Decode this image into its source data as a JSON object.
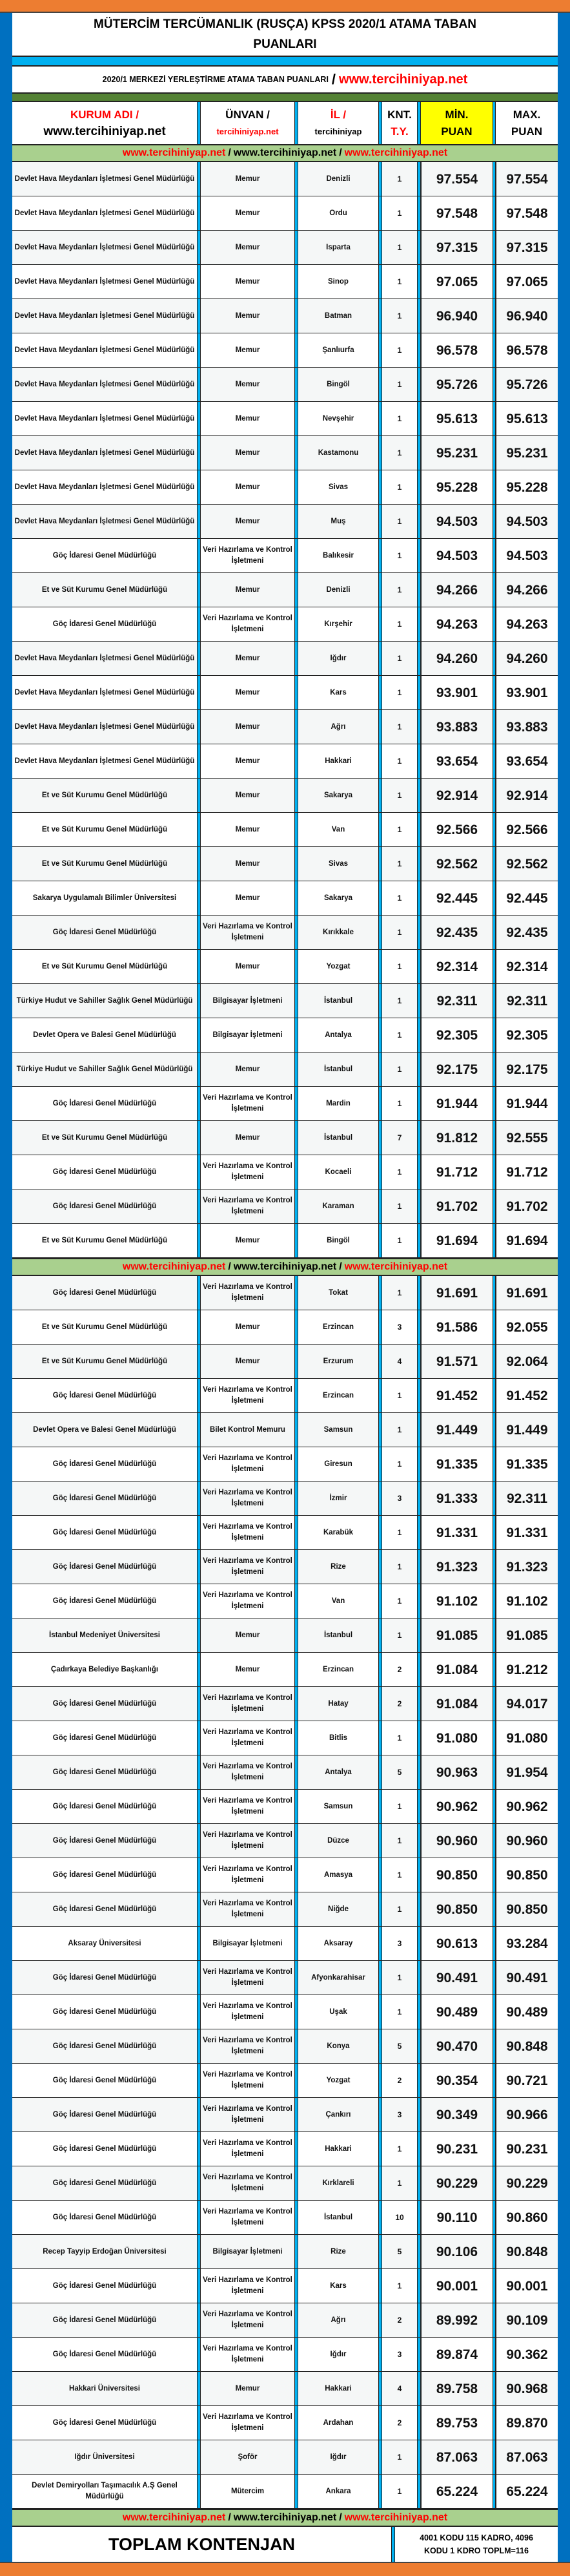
{
  "colors": {
    "frame": "#0070c0",
    "accent_orange": "#ed7d31",
    "strip_blue": "#00b0f0",
    "strip_green": "#548235",
    "link_bar": "#a9d08e",
    "min_header": "#ffff00",
    "red_text": "#ff0000"
  },
  "title": {
    "line1": "MÜTERCİM TERCÜMANLIK (RUSÇA) KPSS 2020/1 ATAMA TABAN",
    "line2": "PUANLARI"
  },
  "subtitle": {
    "text": "2020/1 MERKEZİ YERLEŞTİRME ATAMA TABAN PUANLARI",
    "slash": "/",
    "site": "www.tercihiniyap.net"
  },
  "header": {
    "kurum_a": "KURUM ADI /",
    "kurum_b": "www.tercihiniyap.net",
    "unvan_a": "ÜNVAN /",
    "unvan_b": "tercihiniyap.net",
    "il_a": "İL /",
    "il_b": "tercihiniyap",
    "knt_a": "KNT.",
    "knt_b": "T.Y.",
    "min_a": "MİN.",
    "min_b": "PUAN",
    "max_a": "MAX.",
    "max_b": "PUAN"
  },
  "linkbar": {
    "a": "www.tercihiniyap.net",
    "s1": "/",
    "b": "www.tercihiniyap.net",
    "s2": "/",
    "c": "www.tercihiniyap.net"
  },
  "sections": [
    {
      "rows": [
        [
          "Devlet Hava Meydanları İşletmesi Genel Müdürlüğü",
          "Memur",
          "Denizli",
          "1",
          "97.554",
          "97.554"
        ],
        [
          "Devlet Hava Meydanları İşletmesi Genel Müdürlüğü",
          "Memur",
          "Ordu",
          "1",
          "97.548",
          "97.548"
        ],
        [
          "Devlet Hava Meydanları İşletmesi Genel Müdürlüğü",
          "Memur",
          "Isparta",
          "1",
          "97.315",
          "97.315"
        ],
        [
          "Devlet Hava Meydanları İşletmesi Genel Müdürlüğü",
          "Memur",
          "Sinop",
          "1",
          "97.065",
          "97.065"
        ],
        [
          "Devlet Hava Meydanları İşletmesi Genel Müdürlüğü",
          "Memur",
          "Batman",
          "1",
          "96.940",
          "96.940"
        ],
        [
          "Devlet Hava Meydanları İşletmesi Genel Müdürlüğü",
          "Memur",
          "Şanlıurfa",
          "1",
          "96.578",
          "96.578"
        ],
        [
          "Devlet Hava Meydanları İşletmesi Genel Müdürlüğü",
          "Memur",
          "Bingöl",
          "1",
          "95.726",
          "95.726"
        ],
        [
          "Devlet Hava Meydanları İşletmesi Genel Müdürlüğü",
          "Memur",
          "Nevşehir",
          "1",
          "95.613",
          "95.613"
        ],
        [
          "Devlet Hava Meydanları İşletmesi Genel Müdürlüğü",
          "Memur",
          "Kastamonu",
          "1",
          "95.231",
          "95.231"
        ],
        [
          "Devlet Hava Meydanları İşletmesi Genel Müdürlüğü",
          "Memur",
          "Sivas",
          "1",
          "95.228",
          "95.228"
        ],
        [
          "Devlet Hava Meydanları İşletmesi Genel Müdürlüğü",
          "Memur",
          "Muş",
          "1",
          "94.503",
          "94.503"
        ],
        [
          "Göç İdaresi Genel Müdürlüğü",
          "Veri Hazırlama ve Kontrol İşletmeni",
          "Balıkesir",
          "1",
          "94.503",
          "94.503"
        ],
        [
          "Et ve Süt Kurumu Genel Müdürlüğü",
          "Memur",
          "Denizli",
          "1",
          "94.266",
          "94.266"
        ],
        [
          "Göç İdaresi Genel Müdürlüğü",
          "Veri Hazırlama ve Kontrol İşletmeni",
          "Kırşehir",
          "1",
          "94.263",
          "94.263"
        ],
        [
          "Devlet Hava Meydanları İşletmesi Genel Müdürlüğü",
          "Memur",
          "Iğdır",
          "1",
          "94.260",
          "94.260"
        ],
        [
          "Devlet Hava Meydanları İşletmesi Genel Müdürlüğü",
          "Memur",
          "Kars",
          "1",
          "93.901",
          "93.901"
        ],
        [
          "Devlet Hava Meydanları İşletmesi Genel Müdürlüğü",
          "Memur",
          "Ağrı",
          "1",
          "93.883",
          "93.883"
        ],
        [
          "Devlet Hava Meydanları İşletmesi Genel Müdürlüğü",
          "Memur",
          "Hakkari",
          "1",
          "93.654",
          "93.654"
        ],
        [
          "Et ve Süt Kurumu Genel Müdürlüğü",
          "Memur",
          "Sakarya",
          "1",
          "92.914",
          "92.914"
        ],
        [
          "Et ve Süt Kurumu Genel Müdürlüğü",
          "Memur",
          "Van",
          "1",
          "92.566",
          "92.566"
        ],
        [
          "Et ve Süt Kurumu Genel Müdürlüğü",
          "Memur",
          "Sivas",
          "1",
          "92.562",
          "92.562"
        ],
        [
          "Sakarya Uygulamalı Bilimler Üniversitesi",
          "Memur",
          "Sakarya",
          "1",
          "92.445",
          "92.445"
        ],
        [
          "Göç İdaresi Genel Müdürlüğü",
          "Veri Hazırlama ve Kontrol İşletmeni",
          "Kırıkkale",
          "1",
          "92.435",
          "92.435"
        ],
        [
          "Et ve Süt Kurumu Genel Müdürlüğü",
          "Memur",
          "Yozgat",
          "1",
          "92.314",
          "92.314"
        ],
        [
          "Türkiye Hudut ve Sahiller Sağlık Genel Müdürlüğü",
          "Bilgisayar İşletmeni",
          "İstanbul",
          "1",
          "92.311",
          "92.311"
        ],
        [
          "Devlet Opera ve Balesi Genel Müdürlüğü",
          "Bilgisayar İşletmeni",
          "Antalya",
          "1",
          "92.305",
          "92.305"
        ],
        [
          "Türkiye Hudut ve Sahiller Sağlık Genel Müdürlüğü",
          "Memur",
          "İstanbul",
          "1",
          "92.175",
          "92.175"
        ],
        [
          "Göç İdaresi Genel Müdürlüğü",
          "Veri Hazırlama ve Kontrol İşletmeni",
          "Mardin",
          "1",
          "91.944",
          "91.944"
        ],
        [
          "Et ve Süt Kurumu Genel Müdürlüğü",
          "Memur",
          "İstanbul",
          "7",
          "91.812",
          "92.555"
        ],
        [
          "Göç İdaresi Genel Müdürlüğü",
          "Veri Hazırlama ve Kontrol İşletmeni",
          "Kocaeli",
          "1",
          "91.712",
          "91.712"
        ],
        [
          "Göç İdaresi Genel Müdürlüğü",
          "Veri Hazırlama ve Kontrol İşletmeni",
          "Karaman",
          "1",
          "91.702",
          "91.702"
        ],
        [
          "Et ve Süt Kurumu Genel Müdürlüğü",
          "Memur",
          "Bingöl",
          "1",
          "91.694",
          "91.694"
        ]
      ]
    },
    {
      "rows": [
        [
          "Göç İdaresi Genel Müdürlüğü",
          "Veri Hazırlama ve Kontrol İşletmeni",
          "Tokat",
          "1",
          "91.691",
          "91.691"
        ],
        [
          "Et ve Süt Kurumu Genel Müdürlüğü",
          "Memur",
          "Erzincan",
          "3",
          "91.586",
          "92.055"
        ],
        [
          "Et ve Süt Kurumu Genel Müdürlüğü",
          "Memur",
          "Erzurum",
          "4",
          "91.571",
          "92.064"
        ],
        [
          "Göç İdaresi Genel Müdürlüğü",
          "Veri Hazırlama ve Kontrol İşletmeni",
          "Erzincan",
          "1",
          "91.452",
          "91.452"
        ],
        [
          "Devlet Opera ve Balesi Genel Müdürlüğü",
          "Bilet Kontrol Memuru",
          "Samsun",
          "1",
          "91.449",
          "91.449"
        ],
        [
          "Göç İdaresi Genel Müdürlüğü",
          "Veri Hazırlama ve Kontrol İşletmeni",
          "Giresun",
          "1",
          "91.335",
          "91.335"
        ],
        [
          "Göç İdaresi Genel Müdürlüğü",
          "Veri Hazırlama ve Kontrol İşletmeni",
          "İzmir",
          "3",
          "91.333",
          "92.311"
        ],
        [
          "Göç İdaresi Genel Müdürlüğü",
          "Veri Hazırlama ve Kontrol İşletmeni",
          "Karabük",
          "1",
          "91.331",
          "91.331"
        ],
        [
          "Göç İdaresi Genel Müdürlüğü",
          "Veri Hazırlama ve Kontrol İşletmeni",
          "Rize",
          "1",
          "91.323",
          "91.323"
        ],
        [
          "Göç İdaresi Genel Müdürlüğü",
          "Veri Hazırlama ve Kontrol İşletmeni",
          "Van",
          "1",
          "91.102",
          "91.102"
        ],
        [
          "İstanbul Medeniyet Üniversitesi",
          "Memur",
          "İstanbul",
          "1",
          "91.085",
          "91.085"
        ],
        [
          "Çadırkaya Belediye Başkanlığı",
          "Memur",
          "Erzincan",
          "2",
          "91.084",
          "91.212"
        ],
        [
          "Göç İdaresi Genel Müdürlüğü",
          "Veri Hazırlama ve Kontrol İşletmeni",
          "Hatay",
          "2",
          "91.084",
          "94.017"
        ],
        [
          "Göç İdaresi Genel Müdürlüğü",
          "Veri Hazırlama ve Kontrol İşletmeni",
          "Bitlis",
          "1",
          "91.080",
          "91.080"
        ],
        [
          "Göç İdaresi Genel Müdürlüğü",
          "Veri Hazırlama ve Kontrol İşletmeni",
          "Antalya",
          "5",
          "90.963",
          "91.954"
        ],
        [
          "Göç İdaresi Genel Müdürlüğü",
          "Veri Hazırlama ve Kontrol İşletmeni",
          "Samsun",
          "1",
          "90.962",
          "90.962"
        ],
        [
          "Göç İdaresi Genel Müdürlüğü",
          "Veri Hazırlama ve Kontrol İşletmeni",
          "Düzce",
          "1",
          "90.960",
          "90.960"
        ],
        [
          "Göç İdaresi Genel Müdürlüğü",
          "Veri Hazırlama ve Kontrol İşletmeni",
          "Amasya",
          "1",
          "90.850",
          "90.850"
        ],
        [
          "Göç İdaresi Genel Müdürlüğü",
          "Veri Hazırlama ve Kontrol İşletmeni",
          "Niğde",
          "1",
          "90.850",
          "90.850"
        ],
        [
          "Aksaray Üniversitesi",
          "Bilgisayar İşletmeni",
          "Aksaray",
          "3",
          "90.613",
          "93.284"
        ],
        [
          "Göç İdaresi Genel Müdürlüğü",
          "Veri Hazırlama ve Kontrol İşletmeni",
          "Afyonkarahisar",
          "1",
          "90.491",
          "90.491"
        ],
        [
          "Göç İdaresi Genel Müdürlüğü",
          "Veri Hazırlama ve Kontrol İşletmeni",
          "Uşak",
          "1",
          "90.489",
          "90.489"
        ],
        [
          "Göç İdaresi Genel Müdürlüğü",
          "Veri Hazırlama ve Kontrol İşletmeni",
          "Konya",
          "5",
          "90.470",
          "90.848"
        ],
        [
          "Göç İdaresi Genel Müdürlüğü",
          "Veri Hazırlama ve Kontrol İşletmeni",
          "Yozgat",
          "2",
          "90.354",
          "90.721"
        ],
        [
          "Göç İdaresi Genel Müdürlüğü",
          "Veri Hazırlama ve Kontrol İşletmeni",
          "Çankırı",
          "3",
          "90.349",
          "90.966"
        ],
        [
          "Göç İdaresi Genel Müdürlüğü",
          "Veri Hazırlama ve Kontrol İşletmeni",
          "Hakkari",
          "1",
          "90.231",
          "90.231"
        ],
        [
          "Göç İdaresi Genel Müdürlüğü",
          "Veri Hazırlama ve Kontrol İşletmeni",
          "Kırklareli",
          "1",
          "90.229",
          "90.229"
        ],
        [
          "Göç İdaresi Genel Müdürlüğü",
          "Veri Hazırlama ve Kontrol İşletmeni",
          "İstanbul",
          "10",
          "90.110",
          "90.860"
        ],
        [
          "Recep Tayyip Erdoğan Üniversitesi",
          "Bilgisayar İşletmeni",
          "Rize",
          "5",
          "90.106",
          "90.848"
        ],
        [
          "Göç İdaresi Genel Müdürlüğü",
          "Veri Hazırlama ve Kontrol İşletmeni",
          "Kars",
          "1",
          "90.001",
          "90.001"
        ],
        [
          "Göç İdaresi Genel Müdürlüğü",
          "Veri Hazırlama ve Kontrol İşletmeni",
          "Ağrı",
          "2",
          "89.992",
          "90.109"
        ],
        [
          "Göç İdaresi Genel Müdürlüğü",
          "Veri Hazırlama ve Kontrol İşletmeni",
          "Iğdır",
          "3",
          "89.874",
          "90.362"
        ],
        [
          "Hakkari Üniversitesi",
          "Memur",
          "Hakkari",
          "4",
          "89.758",
          "90.968"
        ],
        [
          "Göç İdaresi Genel Müdürlüğü",
          "Veri Hazırlama ve Kontrol İşletmeni",
          "Ardahan",
          "2",
          "89.753",
          "89.870"
        ],
        [
          "Iğdır Üniversitesi",
          "Şoför",
          "Iğdır",
          "1",
          "87.063",
          "87.063"
        ],
        [
          "Devlet Demiryolları Taşımacılık A.Ş Genel Müdürlüğü",
          "Mütercim",
          "Ankara",
          "1",
          "65.224",
          "65.224"
        ]
      ]
    }
  ],
  "total": {
    "label": "TOPLAM KONTENJAN",
    "note_line1": "4001 KODU 115 KADRO, 4096",
    "note_line2": "KODU 1 KDRO TOPLM=116"
  }
}
